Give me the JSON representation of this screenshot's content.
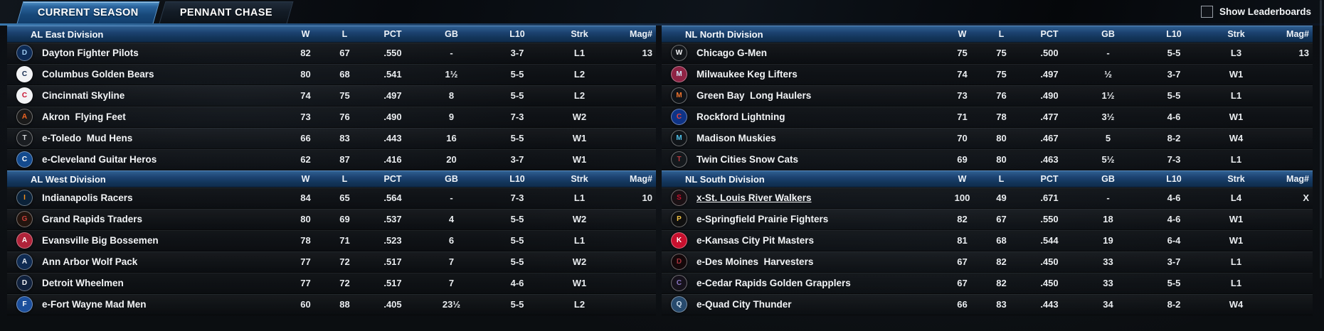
{
  "tabs": [
    {
      "label": "CURRENT SEASON",
      "active": true
    },
    {
      "label": "PENNANT CHASE",
      "active": false
    }
  ],
  "leaderboards_label": "Show Leaderboards",
  "leaderboards_checked": false,
  "columns": [
    "W",
    "L",
    "PCT",
    "GB",
    "L10",
    "Strk",
    "Mag#"
  ],
  "colors": {
    "header_blue": "#1c4270",
    "active_tab_blue": "#2a639c",
    "row_text": "#e9ecef",
    "background": "#0b0e12"
  },
  "divisions": [
    {
      "side": "left",
      "name": "AL East Division",
      "teams": [
        {
          "name": "Dayton Fighter Pilots",
          "w": "82",
          "l": "67",
          "pct": ".550",
          "gb": "-",
          "l10": "3-7",
          "strk": "L1",
          "mag": "13",
          "logo": {
            "abbr": "D",
            "bg": "#0d2b56",
            "fg": "#9ecbef"
          }
        },
        {
          "name": "Columbus Golden Bears",
          "w": "80",
          "l": "68",
          "pct": ".541",
          "gb": "1½",
          "l10": "5-5",
          "strk": "L2",
          "mag": "",
          "logo": {
            "abbr": "C",
            "bg": "#f2f3f5",
            "fg": "#12294e"
          }
        },
        {
          "name": "Cincinnati Skyline",
          "w": "74",
          "l": "75",
          "pct": ".497",
          "gb": "8",
          "l10": "5-5",
          "strk": "L2",
          "mag": "",
          "logo": {
            "abbr": "C",
            "bg": "#f2f3f5",
            "fg": "#c8102e"
          }
        },
        {
          "name": "Akron  Flying Feet",
          "w": "73",
          "l": "76",
          "pct": ".490",
          "gb": "9",
          "l10": "7-3",
          "strk": "W2",
          "mag": "",
          "logo": {
            "abbr": "A",
            "bg": "#1a1a1a",
            "fg": "#f26522"
          }
        },
        {
          "name": "e-Toledo  Mud Hens",
          "w": "66",
          "l": "83",
          "pct": ".443",
          "gb": "16",
          "l10": "5-5",
          "strk": "W1",
          "mag": "",
          "logo": {
            "abbr": "T",
            "bg": "#1a1d21",
            "fg": "#d7d9db"
          }
        },
        {
          "name": "e-Cleveland Guitar Heros",
          "w": "62",
          "l": "87",
          "pct": ".416",
          "gb": "20",
          "l10": "3-7",
          "strk": "W1",
          "mag": "",
          "logo": {
            "abbr": "C",
            "bg": "#134a8e",
            "fg": "#ffffff"
          }
        }
      ]
    },
    {
      "side": "left",
      "name": "AL West Division",
      "teams": [
        {
          "name": "Indianapolis Racers",
          "w": "84",
          "l": "65",
          "pct": ".564",
          "gb": "-",
          "l10": "7-3",
          "strk": "L1",
          "mag": "10",
          "logo": {
            "abbr": "I",
            "bg": "#0b2239",
            "fg": "#f4911e"
          }
        },
        {
          "name": "Grand Rapids Traders",
          "w": "80",
          "l": "69",
          "pct": ".537",
          "gb": "4",
          "l10": "5-5",
          "strk": "W2",
          "mag": "",
          "logo": {
            "abbr": "G",
            "bg": "#23150f",
            "fg": "#c8403a"
          }
        },
        {
          "name": "Evansville Big Bossemen",
          "w": "78",
          "l": "71",
          "pct": ".523",
          "gb": "6",
          "l10": "5-5",
          "strk": "L1",
          "mag": "",
          "logo": {
            "abbr": "A",
            "bg": "#b0233a",
            "fg": "#ffffff"
          }
        },
        {
          "name": "Ann Arbor Wolf Pack",
          "w": "77",
          "l": "72",
          "pct": ".517",
          "gb": "7",
          "l10": "5-5",
          "strk": "W2",
          "mag": "",
          "logo": {
            "abbr": "A",
            "bg": "#0f2b52",
            "fg": "#e8ecf2"
          }
        },
        {
          "name": "Detroit Wheelmen",
          "w": "77",
          "l": "72",
          "pct": ".517",
          "gb": "7",
          "l10": "4-6",
          "strk": "W1",
          "mag": "",
          "logo": {
            "abbr": "D",
            "bg": "#10213d",
            "fg": "#f4f6f8"
          }
        },
        {
          "name": "e-Fort Wayne Mad Men",
          "w": "60",
          "l": "88",
          "pct": ".405",
          "gb": "23½",
          "l10": "5-5",
          "strk": "L2",
          "mag": "",
          "logo": {
            "abbr": "F",
            "bg": "#1c4f9c",
            "fg": "#f7f9fb"
          }
        }
      ]
    },
    {
      "side": "right",
      "name": "NL North Division",
      "teams": [
        {
          "name": "Chicago G-Men",
          "w": "75",
          "l": "75",
          "pct": ".500",
          "gb": "-",
          "l10": "5-5",
          "strk": "L3",
          "mag": "13",
          "logo": {
            "abbr": "W",
            "bg": "#14171b",
            "fg": "#f5f6f8"
          }
        },
        {
          "name": "Milwaukee Keg Lifters",
          "w": "74",
          "l": "75",
          "pct": ".497",
          "gb": "½",
          "l10": "3-7",
          "strk": "W1",
          "mag": "",
          "logo": {
            "abbr": "M",
            "bg": "#8e2344",
            "fg": "#cfe3f5"
          }
        },
        {
          "name": "Green Bay  Long Haulers",
          "w": "73",
          "l": "76",
          "pct": ".490",
          "gb": "1½",
          "l10": "5-5",
          "strk": "L1",
          "mag": "",
          "logo": {
            "abbr": "M",
            "bg": "#101419",
            "fg": "#f2742c"
          }
        },
        {
          "name": "Rockford Lightning",
          "w": "71",
          "l": "78",
          "pct": ".477",
          "gb": "3½",
          "l10": "4-6",
          "strk": "W1",
          "mag": "",
          "logo": {
            "abbr": "C",
            "bg": "#0e3386",
            "fg": "#e8463f"
          }
        },
        {
          "name": "Madison Muskies",
          "w": "70",
          "l": "80",
          "pct": ".467",
          "gb": "5",
          "l10": "8-2",
          "strk": "W4",
          "mag": "",
          "logo": {
            "abbr": "M",
            "bg": "#101418",
            "fg": "#4fc1e9"
          }
        },
        {
          "name": "Twin Cities Snow Cats",
          "w": "69",
          "l": "80",
          "pct": ".463",
          "gb": "5½",
          "l10": "7-3",
          "strk": "L1",
          "mag": "",
          "logo": {
            "abbr": "T",
            "bg": "#14181c",
            "fg": "#b73a3f"
          }
        }
      ]
    },
    {
      "side": "right",
      "name": "NL South Division",
      "teams": [
        {
          "name": "x-St. Louis River Walkers",
          "underline": true,
          "w": "100",
          "l": "49",
          "pct": ".671",
          "gb": "-",
          "l10": "4-6",
          "strk": "L4",
          "mag": "X",
          "logo": {
            "abbr": "S",
            "bg": "#1a1014",
            "fg": "#c8102e"
          }
        },
        {
          "name": "e-Springfield Prairie Fighters",
          "w": "82",
          "l": "67",
          "pct": ".550",
          "gb": "18",
          "l10": "4-6",
          "strk": "W1",
          "mag": "",
          "logo": {
            "abbr": "P",
            "bg": "#0f0f0f",
            "fg": "#f7c545"
          }
        },
        {
          "name": "e-Kansas City Pit Masters",
          "w": "81",
          "l": "68",
          "pct": ".544",
          "gb": "19",
          "l10": "6-4",
          "strk": "W1",
          "mag": "",
          "logo": {
            "abbr": "K",
            "bg": "#c8102e",
            "fg": "#ffffff"
          }
        },
        {
          "name": "e-Des Moines  Harvesters",
          "w": "67",
          "l": "82",
          "pct": ".450",
          "gb": "33",
          "l10": "3-7",
          "strk": "L1",
          "mag": "",
          "logo": {
            "abbr": "D",
            "bg": "#14080a",
            "fg": "#a7333d"
          }
        },
        {
          "name": "e-Cedar Rapids Golden Grapplers",
          "w": "67",
          "l": "82",
          "pct": ".450",
          "gb": "33",
          "l10": "5-5",
          "strk": "L1",
          "mag": "",
          "logo": {
            "abbr": "C",
            "bg": "#16121c",
            "fg": "#8a76c4"
          }
        },
        {
          "name": "e-Quad City Thunder",
          "w": "66",
          "l": "83",
          "pct": ".443",
          "gb": "34",
          "l10": "8-2",
          "strk": "W4",
          "mag": "",
          "logo": {
            "abbr": "Q",
            "bg": "#274a6d",
            "fg": "#cfe0ef"
          }
        }
      ]
    }
  ]
}
